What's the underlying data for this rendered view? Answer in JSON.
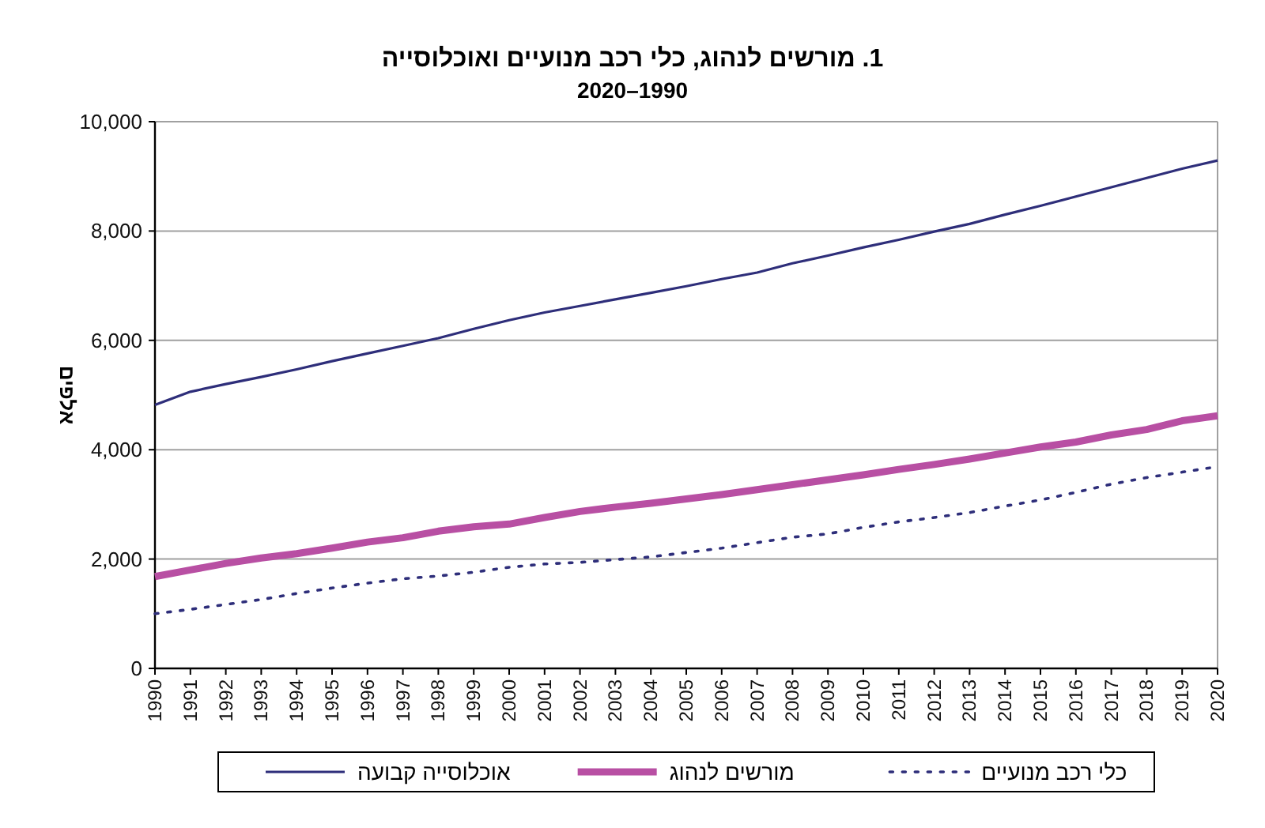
{
  "chart_data": {
    "type": "line",
    "title": "1. מורשים לנהוג, כלי רכב מנועיים ואוכלוסייה",
    "subtitle": "2020–1990",
    "ylabel": "אלפים",
    "x": [
      1990,
      1991,
      1992,
      1993,
      1994,
      1995,
      1996,
      1997,
      1998,
      1999,
      2000,
      2001,
      2002,
      2003,
      2004,
      2005,
      2006,
      2007,
      2008,
      2009,
      2010,
      2011,
      2012,
      2013,
      2014,
      2015,
      2016,
      2017,
      2018,
      2019,
      2020
    ],
    "xlim": [
      1990,
      2020
    ],
    "xticks": [
      1990,
      1991,
      1992,
      1993,
      1994,
      1995,
      1996,
      1997,
      1998,
      1999,
      2000,
      2001,
      2002,
      2003,
      2004,
      2005,
      2006,
      2007,
      2008,
      2009,
      2010,
      2011,
      2012,
      2013,
      2014,
      2015,
      2016,
      2017,
      2018,
      2019,
      2020
    ],
    "ylim": [
      0,
      10000
    ],
    "yticks": [
      {
        "value": 0,
        "label": "0"
      },
      {
        "value": 2000,
        "label": "2,000"
      },
      {
        "value": 4000,
        "label": "4,000"
      },
      {
        "value": 6000,
        "label": "6,000"
      },
      {
        "value": 8000,
        "label": "8,000"
      },
      {
        "value": 10000,
        "label": "10,000"
      }
    ],
    "grid": "y",
    "legend": "bottom",
    "series": [
      {
        "name": "אוכלוסייה קבועה",
        "color": "#2e2e7a",
        "line_style": "solid",
        "values": [
          4820,
          5060,
          5200,
          5330,
          5470,
          5620,
          5760,
          5900,
          6040,
          6210,
          6370,
          6510,
          6630,
          6750,
          6870,
          6990,
          7120,
          7240,
          7410,
          7550,
          7700,
          7840,
          7990,
          8130,
          8300,
          8460,
          8630,
          8800,
          8970,
          9140,
          9290
        ]
      },
      {
        "name": "מורשים לנהוג",
        "color": "#b84fa3",
        "line_style": "solid",
        "values": [
          1680,
          1800,
          1920,
          2020,
          2100,
          2200,
          2310,
          2390,
          2510,
          2590,
          2640,
          2760,
          2870,
          2950,
          3020,
          3100,
          3180,
          3270,
          3360,
          3450,
          3540,
          3640,
          3730,
          3830,
          3940,
          4050,
          4140,
          4270,
          4370,
          4530,
          4620
        ]
      },
      {
        "name": "כלי רכב מנועיים",
        "color": "#2e2e7a",
        "line_style": "dotted",
        "values": [
          1000,
          1080,
          1170,
          1260,
          1370,
          1470,
          1560,
          1640,
          1690,
          1760,
          1850,
          1910,
          1940,
          1990,
          2040,
          2120,
          2200,
          2300,
          2400,
          2460,
          2580,
          2680,
          2760,
          2850,
          2970,
          3080,
          3220,
          3370,
          3490,
          3590,
          3690
        ]
      }
    ]
  }
}
